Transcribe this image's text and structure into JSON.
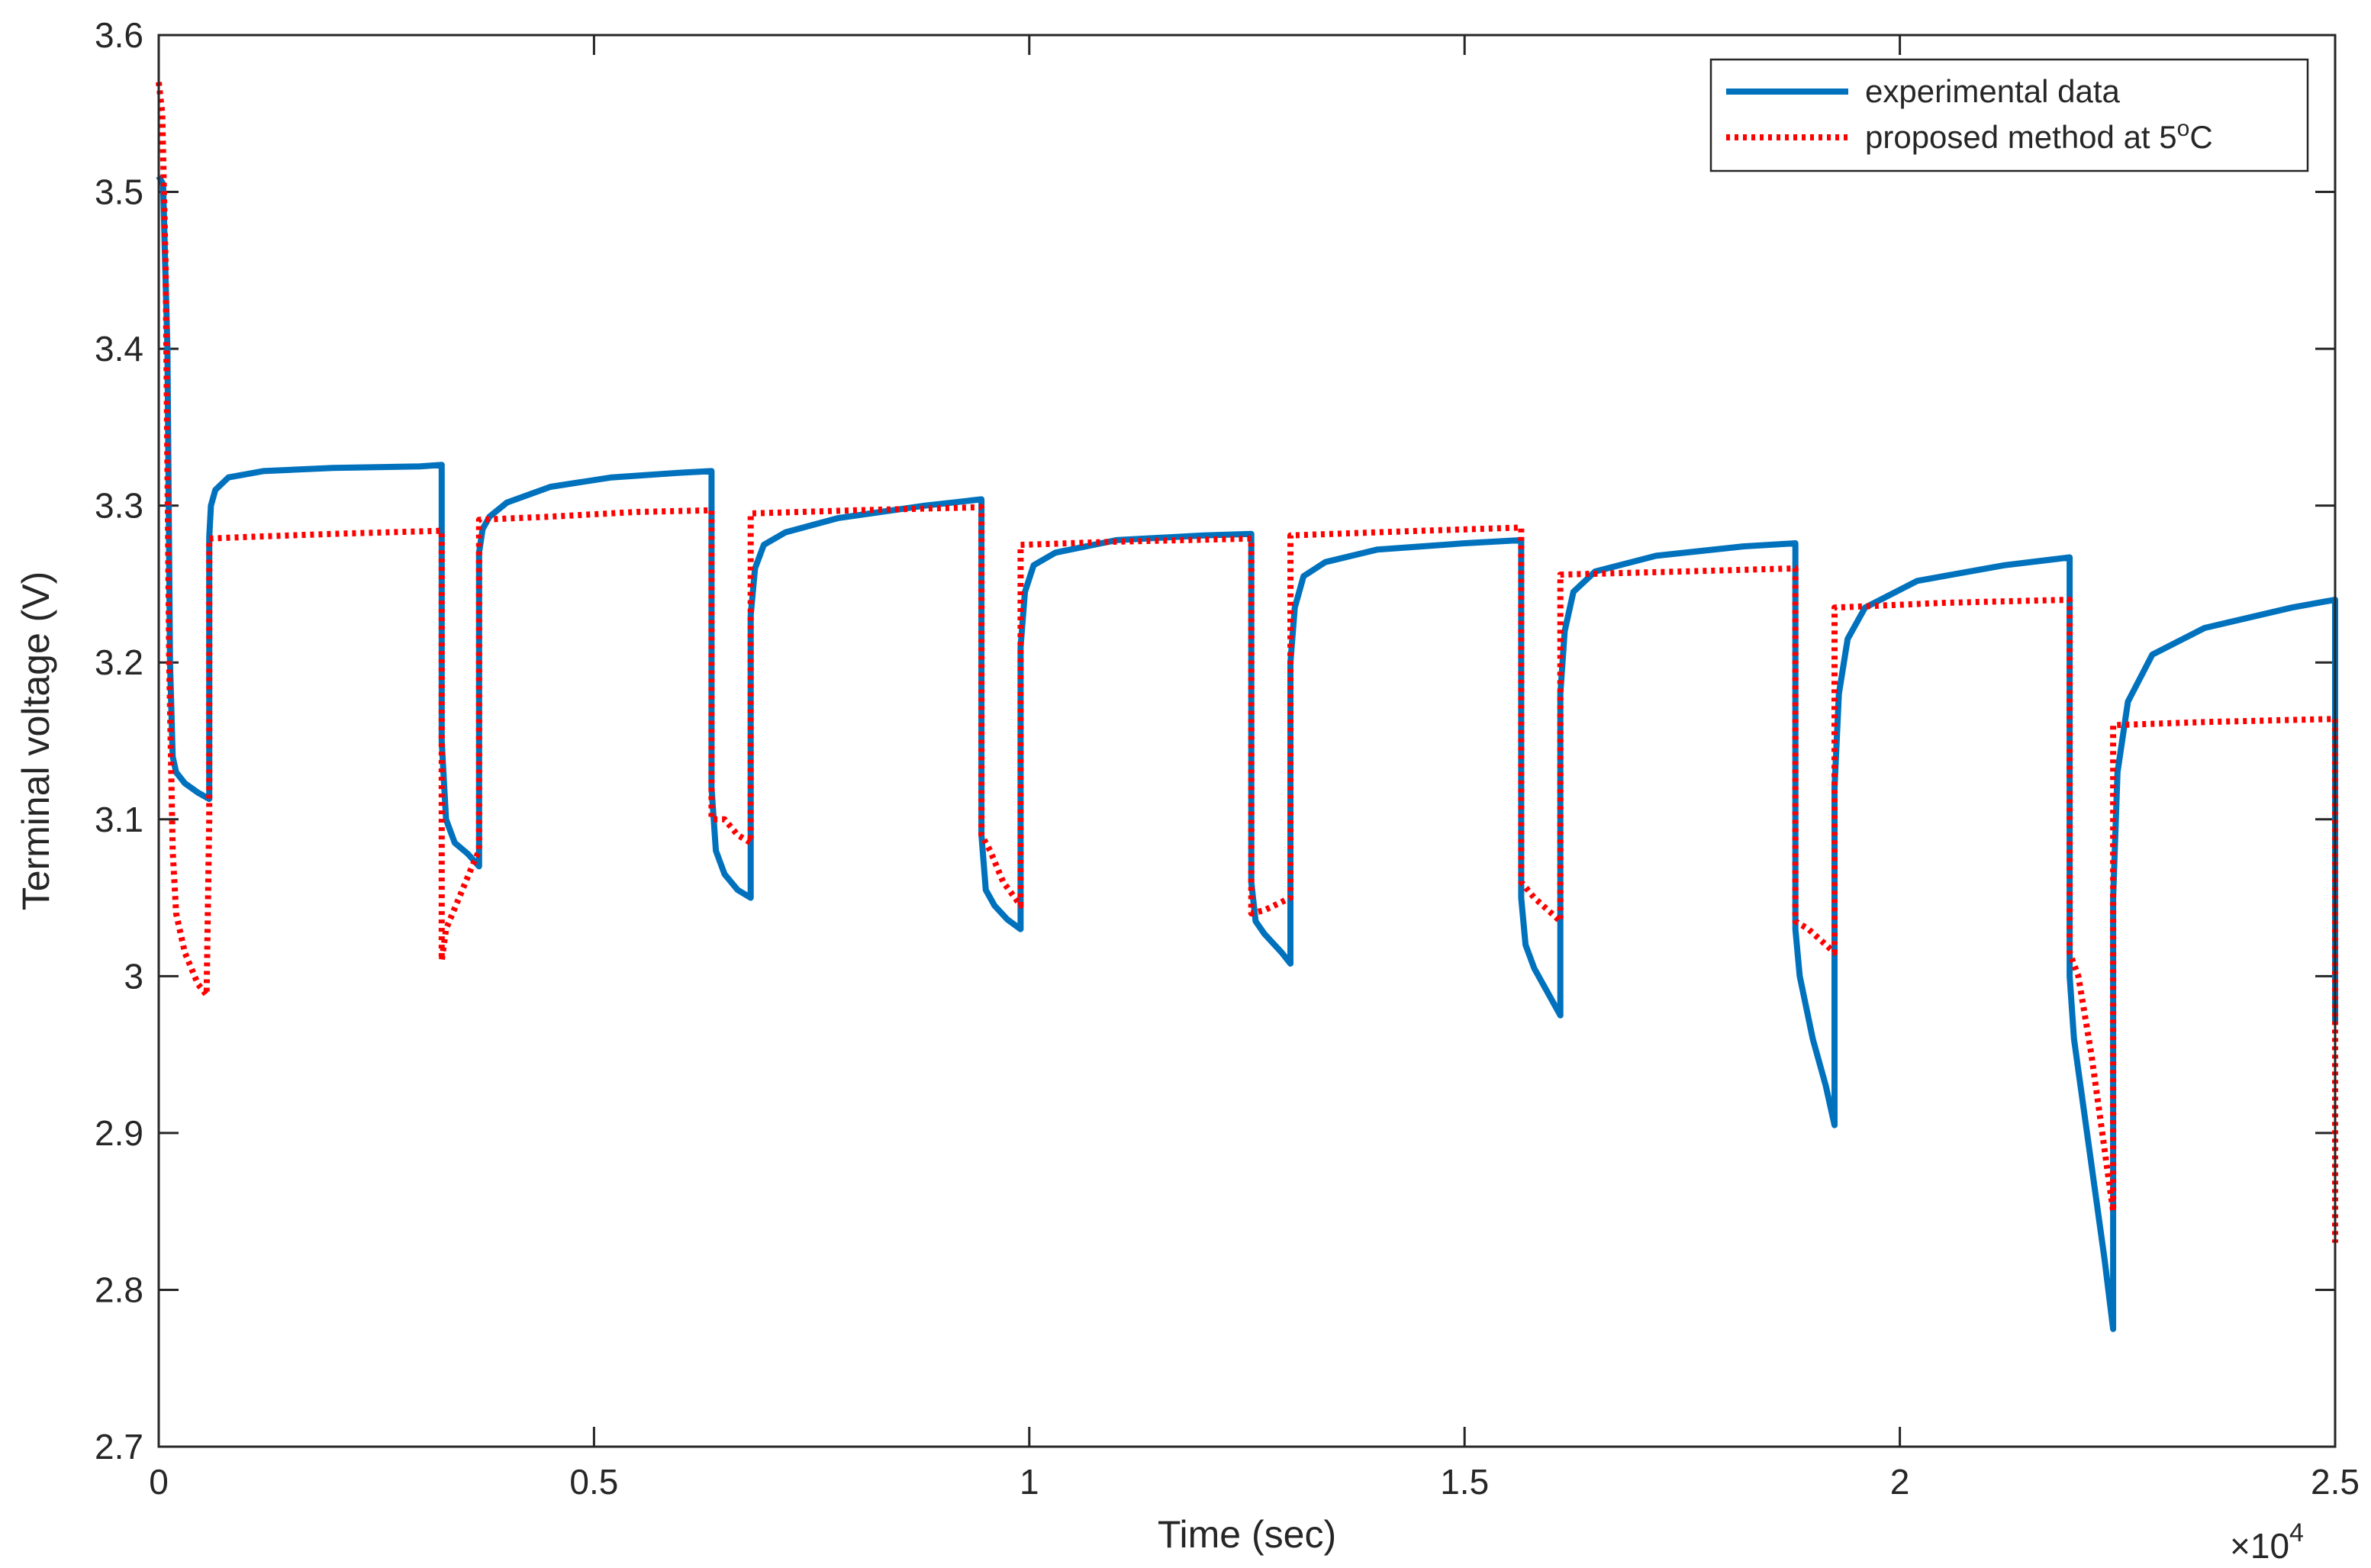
{
  "chart_data": {
    "type": "line",
    "title": "",
    "xlabel": "Time (sec)",
    "ylabel": "Terminal voltage (V)",
    "xlim": [
      0,
      2.5
    ],
    "ylim": [
      2.7,
      3.6
    ],
    "x_scale_exponent": "×10",
    "x_scale_power": "4",
    "x_tick_labels": [
      "0",
      "0.5",
      "1",
      "1.5",
      "2",
      "2.5"
    ],
    "y_tick_labels": [
      "2.7",
      "2.8",
      "2.9",
      "3",
      "3.1",
      "3.2",
      "3.3",
      "3.4",
      "3.5",
      "3.6"
    ],
    "legend": {
      "position": "top-right",
      "entries": [
        {
          "label": "experimental data"
        },
        {
          "label_prefix": "proposed method at 5",
          "label_super": "o",
          "label_suffix": "C"
        }
      ]
    },
    "series": [
      {
        "name": "experimental data",
        "color": "#0072BD",
        "style": "solid",
        "points": [
          [
            0.0,
            3.51
          ],
          [
            0.005,
            3.505
          ],
          [
            0.01,
            3.4
          ],
          [
            0.013,
            3.2
          ],
          [
            0.016,
            3.14
          ],
          [
            0.02,
            3.13
          ],
          [
            0.03,
            3.123
          ],
          [
            0.045,
            3.117
          ],
          [
            0.058,
            3.113
          ],
          [
            0.058,
            3.28
          ],
          [
            0.06,
            3.3
          ],
          [
            0.065,
            3.31
          ],
          [
            0.08,
            3.318
          ],
          [
            0.12,
            3.322
          ],
          [
            0.2,
            3.324
          ],
          [
            0.3,
            3.325
          ],
          [
            0.325,
            3.326
          ],
          [
            0.325,
            3.15
          ],
          [
            0.33,
            3.1
          ],
          [
            0.34,
            3.085
          ],
          [
            0.355,
            3.078
          ],
          [
            0.368,
            3.07
          ],
          [
            0.368,
            3.27
          ],
          [
            0.372,
            3.285
          ],
          [
            0.38,
            3.293
          ],
          [
            0.4,
            3.302
          ],
          [
            0.45,
            3.312
          ],
          [
            0.52,
            3.318
          ],
          [
            0.6,
            3.321
          ],
          [
            0.635,
            3.322
          ],
          [
            0.635,
            3.12
          ],
          [
            0.64,
            3.08
          ],
          [
            0.65,
            3.065
          ],
          [
            0.665,
            3.055
          ],
          [
            0.68,
            3.05
          ],
          [
            0.68,
            3.23
          ],
          [
            0.685,
            3.26
          ],
          [
            0.695,
            3.275
          ],
          [
            0.72,
            3.283
          ],
          [
            0.78,
            3.292
          ],
          [
            0.88,
            3.3
          ],
          [
            0.945,
            3.304
          ],
          [
            0.945,
            3.09
          ],
          [
            0.95,
            3.055
          ],
          [
            0.96,
            3.045
          ],
          [
            0.975,
            3.036
          ],
          [
            0.99,
            3.03
          ],
          [
            0.99,
            3.21
          ],
          [
            0.995,
            3.245
          ],
          [
            1.005,
            3.262
          ],
          [
            1.03,
            3.27
          ],
          [
            1.1,
            3.278
          ],
          [
            1.2,
            3.281
          ],
          [
            1.255,
            3.282
          ],
          [
            1.255,
            3.06
          ],
          [
            1.26,
            3.035
          ],
          [
            1.27,
            3.027
          ],
          [
            1.29,
            3.015
          ],
          [
            1.3,
            3.008
          ],
          [
            1.3,
            3.2
          ],
          [
            1.305,
            3.235
          ],
          [
            1.315,
            3.255
          ],
          [
            1.34,
            3.264
          ],
          [
            1.4,
            3.272
          ],
          [
            1.5,
            3.276
          ],
          [
            1.565,
            3.278
          ],
          [
            1.565,
            3.05
          ],
          [
            1.57,
            3.02
          ],
          [
            1.58,
            3.005
          ],
          [
            1.6,
            2.985
          ],
          [
            1.61,
            2.975
          ],
          [
            1.61,
            3.18
          ],
          [
            1.615,
            3.22
          ],
          [
            1.625,
            3.245
          ],
          [
            1.65,
            3.258
          ],
          [
            1.72,
            3.268
          ],
          [
            1.82,
            3.274
          ],
          [
            1.88,
            3.276
          ],
          [
            1.88,
            3.03
          ],
          [
            1.885,
            3.0
          ],
          [
            1.9,
            2.96
          ],
          [
            1.915,
            2.93
          ],
          [
            1.925,
            2.905
          ],
          [
            1.925,
            3.12
          ],
          [
            1.93,
            3.18
          ],
          [
            1.94,
            3.215
          ],
          [
            1.96,
            3.235
          ],
          [
            2.02,
            3.252
          ],
          [
            2.12,
            3.262
          ],
          [
            2.195,
            3.267
          ],
          [
            2.195,
            3.0
          ],
          [
            2.2,
            2.96
          ],
          [
            2.215,
            2.9
          ],
          [
            2.235,
            2.82
          ],
          [
            2.245,
            2.775
          ],
          [
            2.245,
            3.05
          ],
          [
            2.25,
            3.13
          ],
          [
            2.262,
            3.175
          ],
          [
            2.29,
            3.205
          ],
          [
            2.35,
            3.222
          ],
          [
            2.45,
            3.235
          ],
          [
            2.5,
            3.24
          ],
          [
            2.5,
            2.97
          ]
        ]
      },
      {
        "name": "proposed method at 5°C",
        "color": "#FF0000",
        "style": "dotted",
        "points": [
          [
            0.0,
            3.57
          ],
          [
            0.004,
            3.55
          ],
          [
            0.008,
            3.45
          ],
          [
            0.012,
            3.2
          ],
          [
            0.016,
            3.08
          ],
          [
            0.02,
            3.04
          ],
          [
            0.03,
            3.015
          ],
          [
            0.045,
            2.995
          ],
          [
            0.055,
            2.988
          ],
          [
            0.058,
            3.1
          ],
          [
            0.058,
            3.279
          ],
          [
            0.1,
            3.28
          ],
          [
            0.2,
            3.282
          ],
          [
            0.325,
            3.284
          ],
          [
            0.325,
            3.01
          ],
          [
            0.33,
            3.03
          ],
          [
            0.345,
            3.05
          ],
          [
            0.36,
            3.07
          ],
          [
            0.368,
            3.08
          ],
          [
            0.368,
            3.291
          ],
          [
            0.45,
            3.293
          ],
          [
            0.55,
            3.296
          ],
          [
            0.635,
            3.297
          ],
          [
            0.635,
            3.1
          ],
          [
            0.65,
            3.1
          ],
          [
            0.665,
            3.09
          ],
          [
            0.68,
            3.085
          ],
          [
            0.68,
            3.295
          ],
          [
            0.8,
            3.297
          ],
          [
            0.945,
            3.299
          ],
          [
            0.945,
            3.09
          ],
          [
            0.955,
            3.08
          ],
          [
            0.97,
            3.06
          ],
          [
            0.99,
            3.045
          ],
          [
            0.99,
            3.275
          ],
          [
            1.1,
            3.277
          ],
          [
            1.255,
            3.279
          ],
          [
            1.255,
            3.04
          ],
          [
            1.27,
            3.042
          ],
          [
            1.3,
            3.05
          ],
          [
            1.3,
            3.281
          ],
          [
            1.45,
            3.284
          ],
          [
            1.565,
            3.286
          ],
          [
            1.565,
            3.06
          ],
          [
            1.58,
            3.05
          ],
          [
            1.6,
            3.04
          ],
          [
            1.61,
            3.035
          ],
          [
            1.61,
            3.256
          ],
          [
            1.75,
            3.258
          ],
          [
            1.88,
            3.26
          ],
          [
            1.88,
            3.035
          ],
          [
            1.895,
            3.03
          ],
          [
            1.915,
            3.02
          ],
          [
            1.925,
            3.015
          ],
          [
            1.925,
            3.235
          ],
          [
            2.05,
            3.238
          ],
          [
            2.195,
            3.24
          ],
          [
            2.195,
            3.015
          ],
          [
            2.205,
            3.0
          ],
          [
            2.22,
            2.95
          ],
          [
            2.235,
            2.89
          ],
          [
            2.245,
            2.85
          ],
          [
            2.245,
            3.16
          ],
          [
            2.35,
            3.162
          ],
          [
            2.5,
            3.164
          ],
          [
            2.5,
            2.83
          ]
        ]
      }
    ]
  }
}
